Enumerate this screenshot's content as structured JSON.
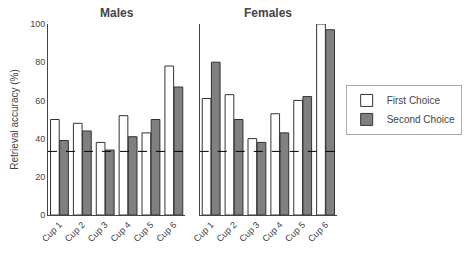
{
  "chart_data": [
    {
      "type": "bar",
      "title": "Males",
      "categories": [
        "Cup 1",
        "Cup 2",
        "Cup 3",
        "Cup 4",
        "Cup 5",
        "Cup 6"
      ],
      "series": [
        {
          "name": "First Choice",
          "color": "#ffffff",
          "values": [
            50,
            48,
            38,
            52,
            43,
            78
          ]
        },
        {
          "name": "Second Choice",
          "color": "#808080",
          "values": [
            39,
            44,
            34,
            41,
            50,
            67
          ]
        }
      ],
      "ylabel": "Retrieval accuracy (%)",
      "ylim": [
        0,
        100
      ],
      "yticks": [
        0,
        20,
        40,
        60,
        80,
        100
      ],
      "reference_line": 33.3,
      "grid": false,
      "legend": "right"
    },
    {
      "type": "bar",
      "title": "Females",
      "categories": [
        "Cup 1",
        "Cup 2",
        "Cup 3",
        "Cup 4",
        "Cup 5",
        "Cup 6"
      ],
      "series": [
        {
          "name": "First Choice",
          "color": "#ffffff",
          "values": [
            61,
            63,
            40,
            53,
            60,
            100
          ]
        },
        {
          "name": "Second Choice",
          "color": "#808080",
          "values": [
            80,
            50,
            38,
            43,
            62,
            97
          ]
        }
      ],
      "ylim": [
        0,
        100
      ],
      "yticks": [
        0,
        20,
        40,
        60,
        80,
        100
      ],
      "reference_line": 33.3,
      "grid": false,
      "tick_labels": "x"
    }
  ]
}
